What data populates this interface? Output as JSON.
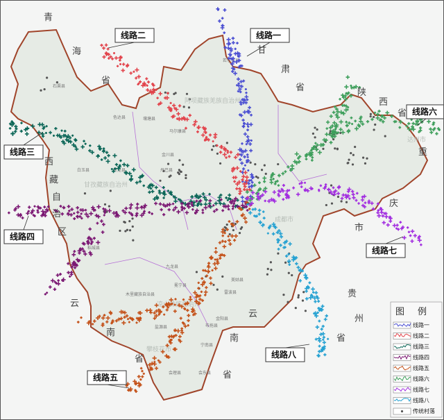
{
  "map": {
    "province_labels": [
      {
        "name": "qinghai",
        "chars": [
          "青",
          "海",
          "省"
        ]
      },
      {
        "name": "xizang",
        "chars": [
          "西",
          "藏",
          "自",
          "治",
          "区"
        ]
      },
      {
        "name": "yunnan-west",
        "chars": [
          "云",
          "南",
          "省"
        ]
      },
      {
        "name": "gansu",
        "chars": [
          "甘",
          "肃",
          "省"
        ]
      },
      {
        "name": "shaanxi",
        "chars": [
          "陕",
          "西",
          "省"
        ]
      },
      {
        "name": "chongqing",
        "chars": [
          "重",
          "庆",
          "市"
        ]
      },
      {
        "name": "guizhou",
        "chars": [
          "贵",
          "州",
          "省"
        ]
      },
      {
        "name": "yunnan-east",
        "chars": [
          "云",
          "南",
          "省"
        ]
      }
    ],
    "prefecture_labels": [
      "阿坝藏族羌族自治州",
      "甘孜藏族自治州",
      "凉山彝族自治州",
      "攀枝花市",
      "达州市",
      "成都市"
    ],
    "county_labels": [
      "石渠县",
      "色达县",
      "壤塘县",
      "马尔康县",
      "金川县",
      "丹巴县",
      "白玉县",
      "新龙县",
      "若尔盖县",
      "稻城县",
      "九龙县",
      "冕宁县",
      "木里藏族自治县",
      "盐源县",
      "会理县",
      "会东县",
      "宁南县",
      "布拖县",
      "金阳县",
      "雷波县",
      "美姑县"
    ],
    "routes": [
      {
        "id": 1,
        "label": "线路一",
        "color": "#4b4fd2"
      },
      {
        "id": 2,
        "label": "线路二",
        "color": "#e2444c"
      },
      {
        "id": 3,
        "label": "线路三",
        "color": "#0b6657"
      },
      {
        "id": 4,
        "label": "线路四",
        "color": "#7b1873"
      },
      {
        "id": 5,
        "label": "线路五",
        "color": "#c4521a"
      },
      {
        "id": 6,
        "label": "线路六",
        "color": "#3f9f5c"
      },
      {
        "id": 7,
        "label": "线路七",
        "color": "#a22fe0"
      },
      {
        "id": 8,
        "label": "线路八",
        "color": "#27a2d2"
      }
    ],
    "village_color": "#555555",
    "boundary_color": "#a0442a",
    "prefecture_boundary_color": "#b56fd6"
  },
  "legend": {
    "title_chars": [
      "图",
      "例"
    ],
    "items": [
      "线路一",
      "线路二",
      "线路三",
      "线路四",
      "线路五",
      "线路六",
      "线路七",
      "线路八"
    ],
    "village_label": "传统村落"
  }
}
